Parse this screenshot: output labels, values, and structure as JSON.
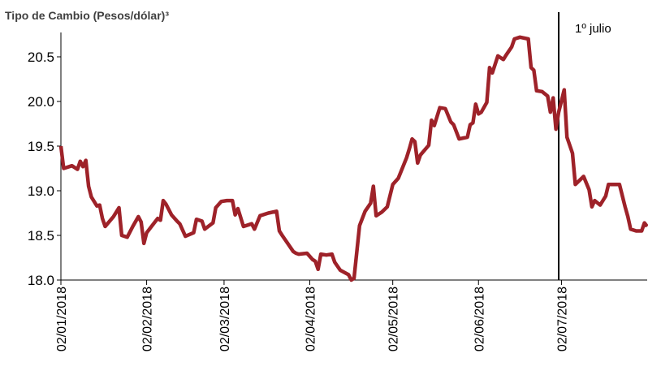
{
  "chart_data": {
    "type": "line",
    "title": "Tipo de Cambio (Pesos/dólar)³",
    "color": "#9e2229",
    "x": [
      "2018-01-02",
      "2018-01-03",
      "2018-01-06",
      "2018-01-08",
      "2018-01-09",
      "2018-01-10",
      "2018-01-11",
      "2018-01-12",
      "2018-01-13",
      "2018-01-15",
      "2018-01-16",
      "2018-01-17",
      "2018-01-18",
      "2018-01-21",
      "2018-01-23",
      "2018-01-24",
      "2018-01-26",
      "2018-01-28",
      "2018-01-30",
      "2018-01-31",
      "2018-02-01",
      "2018-02-02",
      "2018-02-04",
      "2018-02-06",
      "2018-02-07",
      "2018-02-08",
      "2018-02-09",
      "2018-02-11",
      "2018-02-13",
      "2018-02-14",
      "2018-02-16",
      "2018-02-19",
      "2018-02-20",
      "2018-02-22",
      "2018-02-23",
      "2018-02-26",
      "2018-02-27",
      "2018-03-01",
      "2018-03-03",
      "2018-03-05",
      "2018-03-06",
      "2018-03-07",
      "2018-03-09",
      "2018-03-11",
      "2018-03-12",
      "2018-03-13",
      "2018-03-15",
      "2018-03-18",
      "2018-03-21",
      "2018-03-22",
      "2018-03-23",
      "2018-03-25",
      "2018-03-27",
      "2018-03-28",
      "2018-03-29",
      "2018-04-01",
      "2018-04-03",
      "2018-04-04",
      "2018-04-05",
      "2018-04-06",
      "2018-04-08",
      "2018-04-10",
      "2018-04-11",
      "2018-04-13",
      "2018-04-16",
      "2018-04-17",
      "2018-04-18",
      "2018-04-20",
      "2018-04-22",
      "2018-04-24",
      "2018-04-25",
      "2018-04-26",
      "2018-04-28",
      "2018-04-30",
      "2018-05-02",
      "2018-05-04",
      "2018-05-07",
      "2018-05-08",
      "2018-05-09",
      "2018-05-10",
      "2018-05-11",
      "2018-05-12",
      "2018-05-15",
      "2018-05-16",
      "2018-05-17",
      "2018-05-19",
      "2018-05-21",
      "2018-05-23",
      "2018-05-24",
      "2018-05-26",
      "2018-05-29",
      "2018-05-30",
      "2018-05-31",
      "2018-06-01",
      "2018-06-02",
      "2018-06-03",
      "2018-06-05",
      "2018-06-06",
      "2018-06-07",
      "2018-06-09",
      "2018-06-11",
      "2018-06-12",
      "2018-06-14",
      "2018-06-15",
      "2018-06-17",
      "2018-06-20",
      "2018-06-21",
      "2018-06-22",
      "2018-06-23",
      "2018-06-25",
      "2018-06-27",
      "2018-06-28",
      "2018-06-29",
      "2018-06-30",
      "2018-07-01",
      "2018-07-03",
      "2018-07-04",
      "2018-07-06",
      "2018-07-07",
      "2018-07-10",
      "2018-07-12",
      "2018-07-13",
      "2018-07-14",
      "2018-07-16",
      "2018-07-18",
      "2018-07-19",
      "2018-07-23",
      "2018-07-25",
      "2018-07-26",
      "2018-07-27",
      "2018-07-29",
      "2018-07-31",
      "2018-08-01",
      "2018-08-02"
    ],
    "values": [
      19.5,
      19.25,
      19.28,
      19.24,
      19.33,
      19.27,
      19.34,
      19.05,
      18.93,
      18.83,
      18.84,
      18.69,
      18.6,
      18.71,
      18.81,
      18.5,
      18.48,
      18.6,
      18.71,
      18.65,
      18.41,
      18.53,
      18.61,
      18.69,
      18.67,
      18.89,
      18.85,
      18.73,
      18.66,
      18.63,
      18.49,
      18.53,
      18.68,
      18.66,
      18.57,
      18.64,
      18.81,
      18.88,
      18.89,
      18.89,
      18.73,
      18.8,
      18.6,
      18.62,
      18.63,
      18.57,
      18.72,
      18.75,
      18.77,
      18.55,
      18.5,
      18.41,
      18.32,
      18.3,
      18.29,
      18.3,
      18.23,
      18.21,
      18.12,
      18.29,
      18.28,
      18.29,
      18.2,
      18.11,
      18.06,
      18.0,
      18.02,
      18.61,
      18.77,
      18.86,
      19.05,
      18.72,
      18.76,
      18.82,
      19.07,
      19.14,
      19.37,
      19.47,
      19.58,
      19.55,
      19.31,
      19.4,
      19.51,
      19.79,
      19.73,
      19.93,
      19.92,
      19.77,
      19.74,
      19.58,
      19.6,
      19.74,
      19.76,
      19.97,
      19.86,
      19.88,
      19.99,
      20.38,
      20.32,
      20.51,
      20.47,
      20.52,
      20.61,
      20.7,
      20.72,
      20.7,
      20.38,
      20.35,
      20.12,
      20.11,
      20.06,
      19.88,
      20.04,
      19.69,
      19.88,
      20.13,
      19.6,
      19.42,
      19.07,
      19.16,
      19.01,
      18.82,
      18.89,
      18.84,
      18.94,
      19.07,
      19.07,
      18.82,
      18.71,
      18.57,
      18.55,
      18.55,
      18.64,
      18.6
    ],
    "xlim": [
      "2018-01-02",
      "2018-08-02"
    ],
    "xticks": [
      {
        "value": "2018-01-02",
        "label": "02/01/2018"
      },
      {
        "value": "2018-02-02",
        "label": "02/02/2018"
      },
      {
        "value": "2018-03-02",
        "label": "02/03/2018"
      },
      {
        "value": "2018-04-02",
        "label": "02/04/2018"
      },
      {
        "value": "2018-05-02",
        "label": "02/05/2018"
      },
      {
        "value": "2018-06-02",
        "label": "02/06/2018"
      },
      {
        "value": "2018-07-02",
        "label": "02/07/2018"
      }
    ],
    "ylim": [
      18,
      21
    ],
    "yticks": [
      {
        "value": 18,
        "label": "18.0"
      },
      18.5,
      {
        "value": 19,
        "label": "19.0"
      },
      19.5,
      {
        "value": 20,
        "label": "20.0"
      },
      20.5
    ],
    "annotations": [
      {
        "x": "2018-07-01",
        "text": "1º julio"
      }
    ]
  }
}
